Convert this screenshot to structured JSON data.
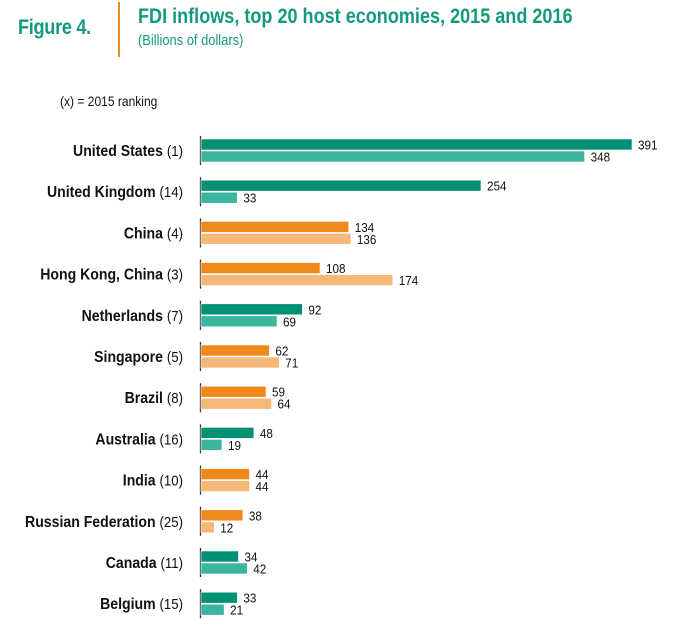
{
  "header": {
    "figure_label": "Figure 4.",
    "title": "FDI inflows, top 20 host economies, 2015 and 2016",
    "subtitle": "(Billions of dollars)",
    "note": "(x) = 2015 ranking"
  },
  "colors": {
    "title_green": "#139a7c",
    "divider_orange": "#ef8a1e",
    "developed_2016": "#009174",
    "developed_2015": "#3cb59f",
    "developing_2016": "#f0891c",
    "developing_2015": "#f6b877"
  },
  "chart_data": {
    "type": "bar",
    "orientation": "horizontal",
    "title": "FDI inflows, top 20 host economies, 2015 and 2016",
    "subtitle": "(Billions of dollars)",
    "annotation": "(x) = 2015 ranking",
    "xlabel": "",
    "ylabel": "",
    "grid": false,
    "categories": [
      {
        "name": "United States",
        "rank": "(1)",
        "group": "developed"
      },
      {
        "name": "United Kingdom",
        "rank": "(14)",
        "group": "developed"
      },
      {
        "name": "China",
        "rank": "(4)",
        "group": "developing"
      },
      {
        "name": "Hong Kong, China",
        "rank": "(3)",
        "group": "developing"
      },
      {
        "name": "Netherlands",
        "rank": "(7)",
        "group": "developed"
      },
      {
        "name": "Singapore",
        "rank": "(5)",
        "group": "developing"
      },
      {
        "name": "Brazil",
        "rank": "(8)",
        "group": "developing"
      },
      {
        "name": "Australia",
        "rank": "(16)",
        "group": "developed"
      },
      {
        "name": "India",
        "rank": "(10)",
        "group": "developing"
      },
      {
        "name": "Russian Federation",
        "rank": "(25)",
        "group": "developing"
      },
      {
        "name": "Canada",
        "rank": "(11)",
        "group": "developed"
      },
      {
        "name": "Belgium",
        "rank": "(15)",
        "group": "developed"
      }
    ],
    "series": [
      {
        "name": "2016",
        "values": [
          391,
          254,
          134,
          108,
          92,
          62,
          59,
          48,
          44,
          38,
          34,
          33
        ]
      },
      {
        "name": "2015",
        "values": [
          348,
          33,
          136,
          174,
          69,
          71,
          64,
          19,
          44,
          12,
          42,
          21
        ]
      }
    ],
    "xlim": [
      0,
      391
    ]
  }
}
